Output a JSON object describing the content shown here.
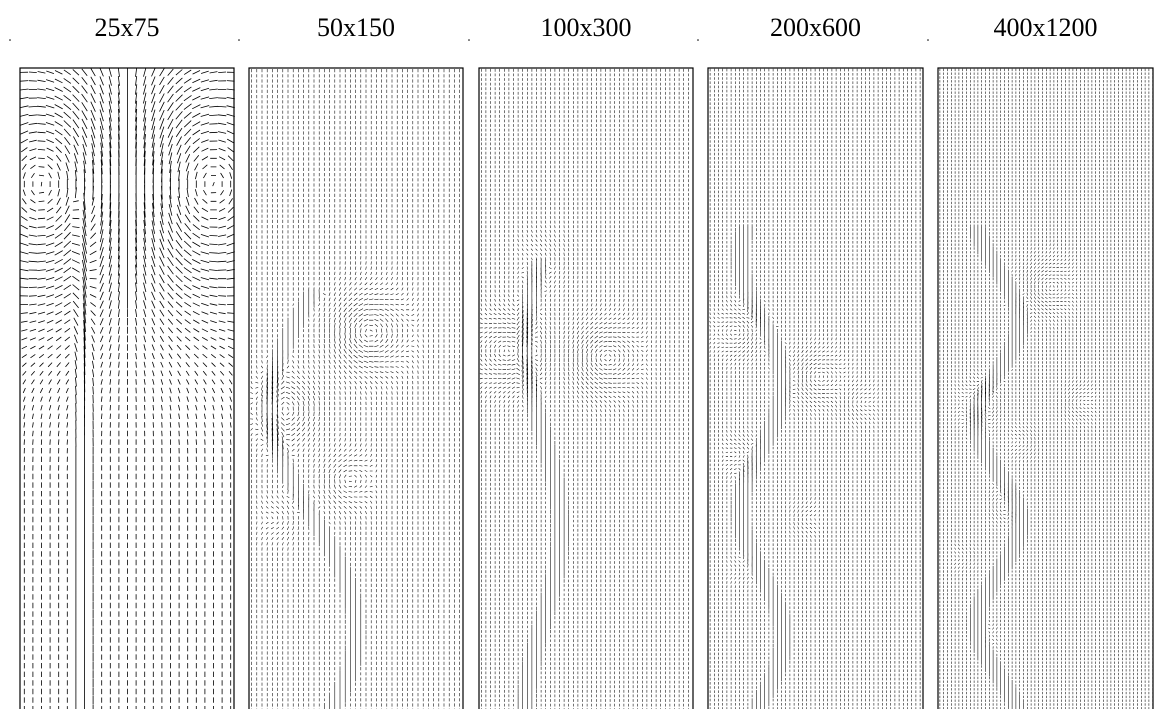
{
  "panels": [
    {
      "label": "25x75"
    },
    {
      "label": "50x150"
    },
    {
      "label": "100x300"
    },
    {
      "label": "200x600"
    },
    {
      "label": "400x1200"
    }
  ]
}
